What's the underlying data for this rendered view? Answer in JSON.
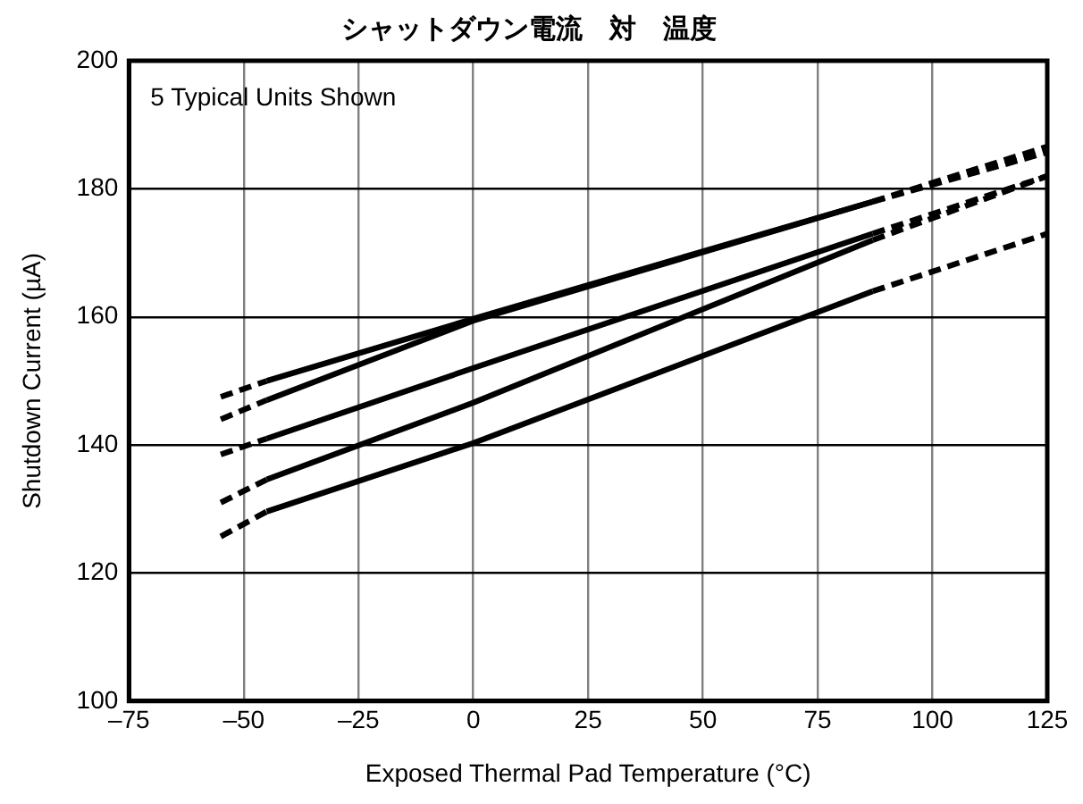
{
  "chart_data": {
    "type": "line",
    "title": "シャットダウン電流　対　温度",
    "xlabel": "Exposed Thermal Pad Temperature (°C)",
    "ylabel": "Shutdown Current (µA)",
    "annotations": [
      "5 Typical Units Shown"
    ],
    "x": [
      -55,
      -45,
      0,
      87,
      125
    ],
    "series": [
      {
        "color": "#000000",
        "line_style": "solid",
        "values": [
          null,
          150,
          159.7,
          178,
          null
        ]
      },
      {
        "color": "#000000",
        "line_style": "solid",
        "values": [
          null,
          147,
          159.4,
          178,
          null
        ]
      },
      {
        "color": "#000000",
        "line_style": "solid",
        "values": [
          null,
          141,
          152,
          173,
          null
        ]
      },
      {
        "color": "#000000",
        "line_style": "solid",
        "values": [
          null,
          134.6,
          146.6,
          172,
          null
        ]
      },
      {
        "color": "#000000",
        "line_style": "solid",
        "values": [
          null,
          129.6,
          140.3,
          164,
          null
        ]
      },
      {
        "color": "#000000",
        "line_style": "dashed",
        "values": [
          147.5,
          150,
          null,
          178,
          186.6
        ]
      },
      {
        "color": "#000000",
        "line_style": "dashed",
        "values": [
          144,
          147,
          null,
          178,
          185.7
        ]
      },
      {
        "color": "#000000",
        "line_style": "dashed",
        "values": [
          138.5,
          141,
          null,
          173,
          182
        ]
      },
      {
        "color": "#000000",
        "line_style": "dashed",
        "values": [
          131,
          134.6,
          null,
          172,
          182
        ]
      },
      {
        "color": "#000000",
        "line_style": "dashed",
        "values": [
          125.7,
          129.6,
          null,
          164,
          173
        ]
      }
    ],
    "xlim": [
      -75,
      125
    ],
    "xticks": [
      {
        "value": -75,
        "label": "–75"
      },
      {
        "value": -50,
        "label": "–50"
      },
      {
        "value": -25,
        "label": "–25"
      },
      0,
      25,
      50,
      75,
      100,
      125
    ],
    "ylim": [
      100,
      200
    ],
    "yticks": [
      100,
      120,
      140,
      160,
      180,
      200
    ],
    "grid": true,
    "legend": false,
    "marker": "none"
  }
}
